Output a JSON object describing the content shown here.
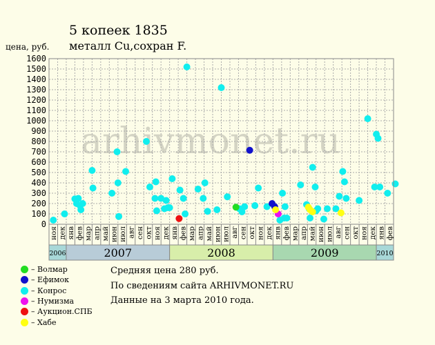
{
  "title_line1": "5 копеек 1835",
  "title_line2": "металл Cu,сохран F.",
  "watermark": "arhivmonet.ru",
  "notes": {
    "avg": "Средняя цена 280 руб.",
    "source": "По  сведениям сайта ARHIVMONET.RU",
    "date": "Данные на 3 марта 2010 года."
  },
  "legend": [
    {
      "label": "– Волмар",
      "color": "#22dd22"
    },
    {
      "label": "– Ефимок",
      "color": "#1111cc"
    },
    {
      "label": "– Конрос",
      "color": "#11eeee"
    },
    {
      "label": "– Нумизма",
      "color": "#ee11ee"
    },
    {
      "label": "– Аукцион.СПБ",
      "color": "#ee1111"
    },
    {
      "label": "– Хабе",
      "color": "#ffff11"
    }
  ],
  "chart_data": {
    "type": "scatter",
    "ylabel": "цена, руб.",
    "ylim": [
      0,
      1600
    ],
    "yticks": [
      0,
      100,
      200,
      300,
      400,
      500,
      600,
      700,
      800,
      900,
      1000,
      1100,
      1200,
      1300,
      1400,
      1500,
      1600
    ],
    "months": [
      "ноя",
      "дек",
      "янв",
      "фев",
      "мар",
      "апр",
      "май",
      "июн",
      "июл",
      "авг",
      "сен",
      "окт",
      "ноя",
      "дек",
      "янв",
      "фев",
      "мар",
      "апр",
      "май",
      "июн",
      "июл",
      "авг",
      "сен",
      "окт",
      "ноя",
      "дек",
      "янв",
      "фев",
      "мар",
      "апр",
      "май",
      "июн",
      "июл",
      "авг",
      "сен",
      "окт",
      "ноя",
      "дек",
      "янв",
      "фев"
    ],
    "years": [
      {
        "label": "2006",
        "start": 0,
        "span": 2,
        "color": "#a8d8d8",
        "small": true
      },
      {
        "label": "2007",
        "start": 2,
        "span": 12,
        "color": "#b8ccd8",
        "small": false
      },
      {
        "label": "2008",
        "start": 14,
        "span": 12,
        "color": "#d8eeaa",
        "small": false
      },
      {
        "label": "2009",
        "start": 26,
        "span": 12,
        "color": "#a8d8b0",
        "small": false
      },
      {
        "label": "2010",
        "start": 38,
        "span": 2,
        "color": "#a8d8d8",
        "small": true
      }
    ],
    "series": [
      {
        "name": "Конрос",
        "color": "#11eeee",
        "points": [
          [
            0.0,
            40
          ],
          [
            1.3,
            100
          ],
          [
            2.5,
            245
          ],
          [
            2.7,
            200
          ],
          [
            2.9,
            250
          ],
          [
            3.1,
            180
          ],
          [
            3.2,
            140
          ],
          [
            3.4,
            200
          ],
          [
            4.5,
            520
          ],
          [
            4.6,
            350
          ],
          [
            6.8,
            300
          ],
          [
            7.4,
            700
          ],
          [
            7.5,
            400
          ],
          [
            7.6,
            75
          ],
          [
            8.4,
            510
          ],
          [
            10.8,
            800
          ],
          [
            11.2,
            360
          ],
          [
            11.8,
            250
          ],
          [
            11.9,
            410
          ],
          [
            12.0,
            130
          ],
          [
            12.5,
            250
          ],
          [
            12.9,
            150
          ],
          [
            13.1,
            230
          ],
          [
            13.3,
            160
          ],
          [
            13.5,
            160
          ],
          [
            13.8,
            440
          ],
          [
            14.7,
            330
          ],
          [
            15.1,
            250
          ],
          [
            15.3,
            100
          ],
          [
            15.5,
            1520
          ],
          [
            16.8,
            340
          ],
          [
            17.4,
            250
          ],
          [
            17.6,
            400
          ],
          [
            17.9,
            125
          ],
          [
            19.0,
            140
          ],
          [
            19.5,
            1320
          ],
          [
            20.2,
            265
          ],
          [
            21.6,
            150
          ],
          [
            21.9,
            120
          ],
          [
            22.2,
            170
          ],
          [
            23.4,
            180
          ],
          [
            23.8,
            350
          ],
          [
            24.8,
            170
          ],
          [
            26.3,
            40
          ],
          [
            26.6,
            300
          ],
          [
            26.8,
            60
          ],
          [
            26.9,
            170
          ],
          [
            27.1,
            60
          ],
          [
            28.7,
            380
          ],
          [
            29.4,
            190
          ],
          [
            29.7,
            150
          ],
          [
            29.8,
            60
          ],
          [
            30.1,
            550
          ],
          [
            30.4,
            360
          ],
          [
            30.5,
            130
          ],
          [
            30.7,
            150
          ],
          [
            31.4,
            50
          ],
          [
            31.8,
            150
          ],
          [
            32.8,
            150
          ],
          [
            33.2,
            270
          ],
          [
            33.6,
            510
          ],
          [
            33.8,
            410
          ],
          [
            34.0,
            250
          ],
          [
            35.5,
            230
          ],
          [
            36.5,
            1020
          ],
          [
            37.3,
            360
          ],
          [
            37.5,
            870
          ],
          [
            37.7,
            830
          ],
          [
            37.9,
            360
          ],
          [
            38.8,
            300
          ],
          [
            39.7,
            390
          ]
        ]
      },
      {
        "name": "Ефимок",
        "color": "#1111cc",
        "points": [
          [
            22.8,
            715
          ],
          [
            25.4,
            200
          ],
          [
            25.7,
            170
          ]
        ]
      },
      {
        "name": "Волмар",
        "color": "#22dd22",
        "points": [
          [
            21.2,
            165
          ]
        ]
      },
      {
        "name": "Нумизма",
        "color": "#ee11ee",
        "points": [
          [
            26.1,
            100
          ]
        ]
      },
      {
        "name": "Аукцион.СПБ",
        "color": "#ee1111",
        "points": [
          [
            14.6,
            55
          ]
        ]
      },
      {
        "name": "Хабе",
        "color": "#ffff11",
        "points": [
          [
            25.8,
            140
          ],
          [
            29.6,
            165
          ],
          [
            29.8,
            140
          ],
          [
            30.1,
            120
          ],
          [
            33.4,
            110
          ]
        ]
      }
    ]
  }
}
